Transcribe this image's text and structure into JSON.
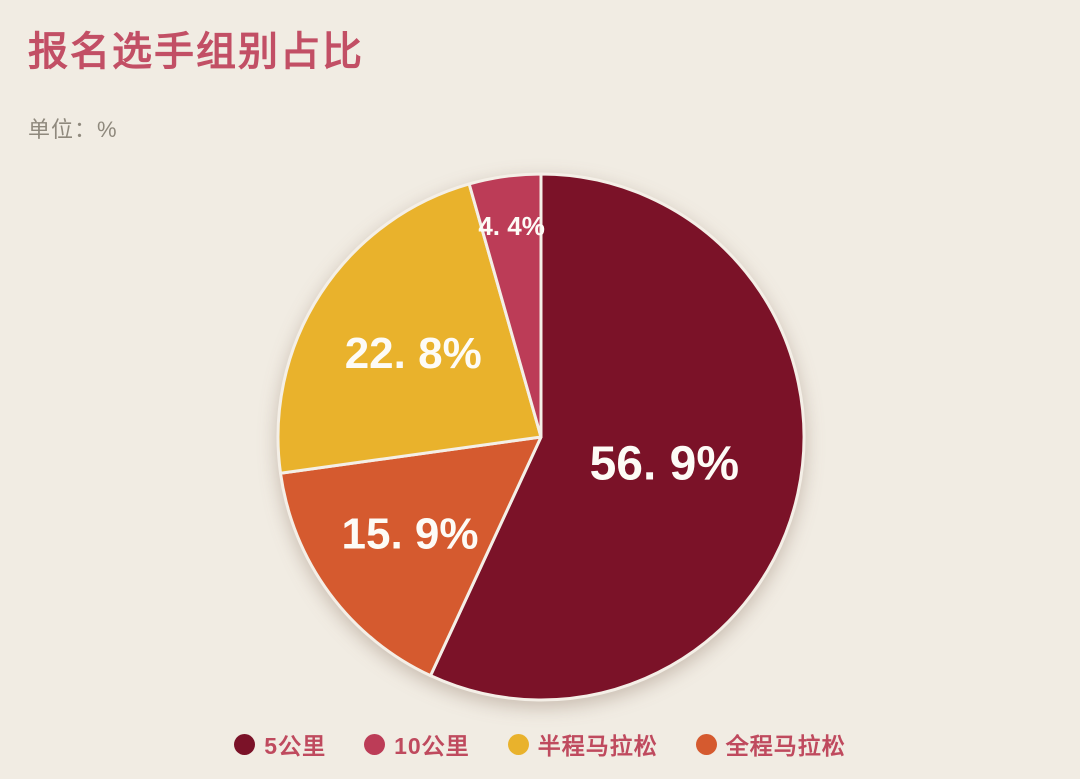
{
  "header": {
    "title": "报名选手组别占比",
    "unit_label": "单位：%"
  },
  "colors": {
    "background": "#f1ece3",
    "title_text": "#c24f65",
    "unit_text": "#8f897d",
    "legend_text": "#bf4a5e",
    "slice_divider": "#f4efe7",
    "slice_label_text": "#fdfbf6"
  },
  "chart_data": {
    "type": "pie",
    "title": "报名选手组别占比",
    "unit": "%",
    "legend_position": "bottom",
    "start_angle_deg": 0,
    "direction": "clockwise",
    "slices": [
      {
        "name": "5公里",
        "value": 56.9,
        "display_label": "56. 9%",
        "color": "#7b1228",
        "label_r": 0.48,
        "label_size": 48
      },
      {
        "name": "全程马拉松",
        "value": 15.9,
        "display_label": "15. 9%",
        "color": "#d55a2f",
        "label_r": 0.62,
        "label_size": 44
      },
      {
        "name": "半程马拉松",
        "value": 22.8,
        "display_label": "22. 8%",
        "color": "#e9b22c",
        "label_r": 0.58,
        "label_size": 44
      },
      {
        "name": "10公里",
        "value": 4.4,
        "display_label": "4. 4%",
        "color": "#bc3c57",
        "label_r": 0.81,
        "label_size": 26
      }
    ],
    "legend": [
      {
        "label": "5公里",
        "color": "#7b1228"
      },
      {
        "label": "10公里",
        "color": "#bc3c57"
      },
      {
        "label": "半程马拉松",
        "color": "#e9b22c"
      },
      {
        "label": "全程马拉松",
        "color": "#d55a2f"
      }
    ]
  }
}
